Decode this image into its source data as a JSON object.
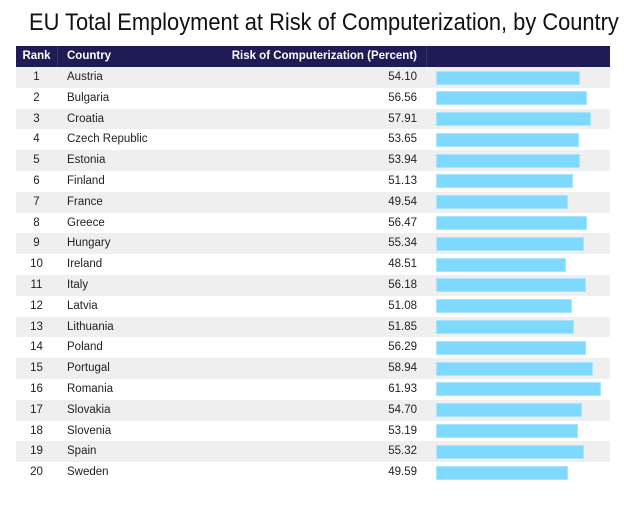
{
  "chart_data": {
    "type": "table",
    "title": "EU Total Employment at Risk of Computerization, by Country",
    "columns": [
      "Rank",
      "Country",
      "Risk of Computerization (Percent)",
      ""
    ],
    "bar_color": "#7fd8fd",
    "header_color": "#1e1c57",
    "rows": [
      {
        "rank": "1",
        "country": "Austria",
        "value": 54.1,
        "label": "54.10"
      },
      {
        "rank": "2",
        "country": "Bulgaria",
        "value": 56.56,
        "label": "56.56"
      },
      {
        "rank": "3",
        "country": "Croatia",
        "value": 57.91,
        "label": "57.91"
      },
      {
        "rank": "4",
        "country": "Czech Republic",
        "value": 53.65,
        "label": "53.65"
      },
      {
        "rank": "5",
        "country": "Estonia",
        "value": 53.94,
        "label": "53.94"
      },
      {
        "rank": "6",
        "country": "Finland",
        "value": 51.13,
        "label": "51.13"
      },
      {
        "rank": "7",
        "country": "France",
        "value": 49.54,
        "label": "49.54"
      },
      {
        "rank": "8",
        "country": "Greece",
        "value": 56.47,
        "label": "56.47"
      },
      {
        "rank": "9",
        "country": "Hungary",
        "value": 55.34,
        "label": "55.34"
      },
      {
        "rank": "10",
        "country": "Ireland",
        "value": 48.51,
        "label": "48.51"
      },
      {
        "rank": "11",
        "country": "Italy",
        "value": 56.18,
        "label": "56.18"
      },
      {
        "rank": "12",
        "country": "Latvia",
        "value": 51.08,
        "label": "51.08"
      },
      {
        "rank": "13",
        "country": "Lithuania",
        "value": 51.85,
        "label": "51.85"
      },
      {
        "rank": "14",
        "country": "Poland",
        "value": 56.29,
        "label": "56.29"
      },
      {
        "rank": "15",
        "country": "Portugal",
        "value": 58.94,
        "label": "58.94"
      },
      {
        "rank": "16",
        "country": "Romania",
        "value": 61.93,
        "label": "61.93"
      },
      {
        "rank": "17",
        "country": "Slovakia",
        "value": 54.7,
        "label": "54.70"
      },
      {
        "rank": "18",
        "country": "Slovenia",
        "value": 53.19,
        "label": "53.19"
      },
      {
        "rank": "19",
        "country": "Spain",
        "value": 55.32,
        "label": "55.32"
      },
      {
        "rank": "20",
        "country": "Sweden",
        "value": 49.59,
        "label": "49.59"
      }
    ]
  }
}
